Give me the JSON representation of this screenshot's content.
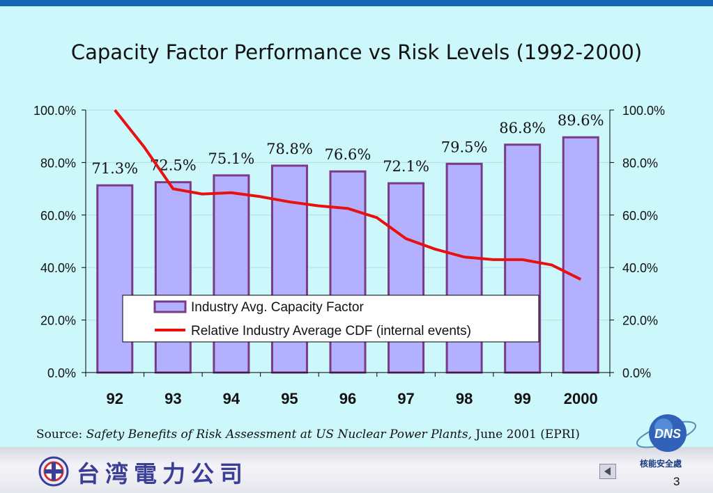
{
  "slide": {
    "title": "Capacity Factor Performance vs Risk Levels (1992-2000)",
    "source_prefix": "Source: ",
    "source_title": "Safety Benefits of Risk Assessment at US Nuclear Power Plants,",
    "source_suffix": " June 2001 (EPRI)",
    "company_name": "台湾電力公司",
    "badge_text": "DNS",
    "department": "核能安全處",
    "page_number": "3"
  },
  "chart_data": {
    "type": "bar",
    "title": "Capacity Factor Performance vs Risk Levels (1992-2000)",
    "categories": [
      "92",
      "93",
      "94",
      "95",
      "96",
      "97",
      "98",
      "99",
      "2000"
    ],
    "series": [
      {
        "name": "Industry Avg. Capacity Factor",
        "type": "bar",
        "axis": "left",
        "values": [
          71.3,
          72.5,
          75.1,
          78.8,
          76.6,
          72.1,
          79.5,
          86.8,
          89.6
        ],
        "data_labels": [
          "71.3%",
          "72.5%",
          "75.1%",
          "78.8%",
          "76.6%",
          "72.1%",
          "79.5%",
          "86.8%",
          "89.6%"
        ],
        "color": "#b3b1ff",
        "border_color": "#7b3a86"
      },
      {
        "name": "Relative Industry Average CDF (internal events)",
        "type": "line",
        "axis": "right",
        "x": [
          92,
          92.5,
          93,
          93.5,
          94,
          94.5,
          95,
          95.5,
          96,
          96.5,
          97,
          97.5,
          98,
          98.5,
          99,
          99.5,
          100
        ],
        "values": [
          100,
          86,
          70,
          68,
          68.5,
          67,
          65,
          63.5,
          62.5,
          59,
          51,
          47,
          44,
          43,
          43,
          41,
          35.5
        ],
        "color": "#e81010"
      }
    ],
    "y_left": {
      "lim": [
        0,
        100
      ],
      "ticks": [
        "0.0%",
        "20.0%",
        "40.0%",
        "60.0%",
        "80.0%",
        "100.0%"
      ]
    },
    "y_right": {
      "lim": [
        0,
        100
      ],
      "ticks": [
        "0.0%",
        "20.0%",
        "40.0%",
        "60.0%",
        "80.0%",
        "100.0%"
      ]
    },
    "grid": true,
    "legend_position": "bottom-center (inside plot)"
  }
}
